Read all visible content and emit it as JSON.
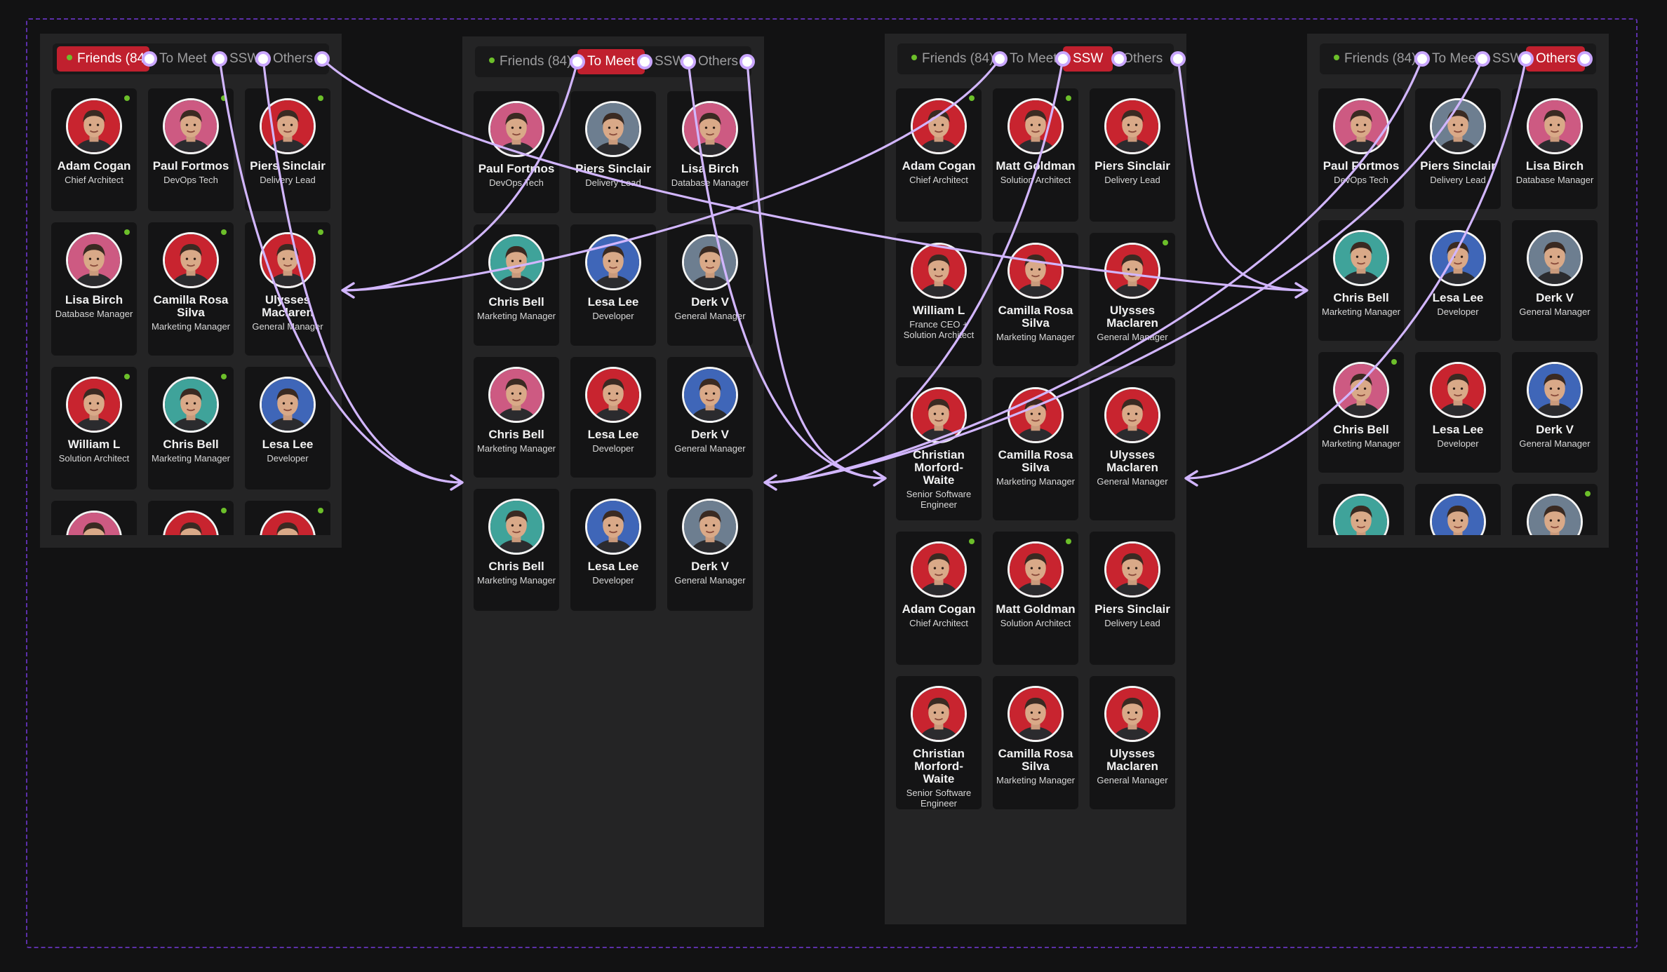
{
  "colors": {
    "background": "#121213",
    "panel": "#242425",
    "card": "#141415",
    "accent_tab": "#c0202e",
    "online": "#6cbf2a",
    "connector": "#d2b6ff",
    "frame": "#5b2fa8"
  },
  "panels": [
    {
      "id": "panel-1",
      "tabs": [
        {
          "label": "Friends (84)",
          "active": true,
          "dot": true
        },
        {
          "label": "To Meet",
          "active": false,
          "dot": false
        },
        {
          "label": "SSW",
          "active": false,
          "dot": false
        },
        {
          "label": "Others",
          "active": false,
          "dot": false
        }
      ],
      "cards": [
        {
          "name": "Adam Cogan",
          "role": "Chief Architect",
          "online": true,
          "bg": "red"
        },
        {
          "name": "Paul Fortmos",
          "role": "DevOps Tech",
          "online": true,
          "bg": "pink"
        },
        {
          "name": "Piers Sinclair",
          "role": "Delivery Lead",
          "online": true,
          "bg": "red"
        },
        {
          "name": "Lisa Birch",
          "role": "Database Manager",
          "online": true,
          "bg": "pink"
        },
        {
          "name": "Camilla Rosa Silva",
          "role": "Marketing Manager",
          "online": true,
          "bg": "red"
        },
        {
          "name": "Ulysses Maclaren",
          "role": "General Manager",
          "online": true,
          "bg": "red"
        },
        {
          "name": "William L",
          "role": "Solution Architect",
          "online": true,
          "bg": "red"
        },
        {
          "name": "Chris Bell",
          "role": "Marketing Manager",
          "online": true,
          "bg": "teal"
        },
        {
          "name": "Lesa Lee",
          "role": "Developer",
          "online": false,
          "bg": "blue"
        },
        {
          "name": "",
          "role": "",
          "online": false,
          "bg": "pink"
        },
        {
          "name": "",
          "role": "",
          "online": true,
          "bg": "red"
        },
        {
          "name": "",
          "role": "",
          "online": true,
          "bg": "red"
        }
      ]
    },
    {
      "id": "panel-2",
      "tabs": [
        {
          "label": "Friends (84)",
          "active": false,
          "dot": true
        },
        {
          "label": "To Meet",
          "active": true,
          "dot": false
        },
        {
          "label": "SSW",
          "active": false,
          "dot": false
        },
        {
          "label": "Others",
          "active": false,
          "dot": false
        }
      ],
      "cards": [
        {
          "name": "Paul Fortmos",
          "role": "DevOps Tech",
          "online": false,
          "bg": "pink"
        },
        {
          "name": "Piers Sinclair",
          "role": "Delivery Lead",
          "online": false,
          "bg": "slate"
        },
        {
          "name": "Lisa Birch",
          "role": "Database Manager",
          "online": false,
          "bg": "pink"
        },
        {
          "name": "Chris Bell",
          "role": "Marketing Manager",
          "online": false,
          "bg": "teal"
        },
        {
          "name": "Lesa Lee",
          "role": "Developer",
          "online": false,
          "bg": "blue"
        },
        {
          "name": "Derk V",
          "role": "General Manager",
          "online": false,
          "bg": "slate"
        },
        {
          "name": "Chris Bell",
          "role": "Marketing Manager",
          "online": false,
          "bg": "pink"
        },
        {
          "name": "Lesa Lee",
          "role": "Developer",
          "online": false,
          "bg": "red"
        },
        {
          "name": "Derk V",
          "role": "General Manager",
          "online": false,
          "bg": "blue"
        },
        {
          "name": "Chris Bell",
          "role": "Marketing Manager",
          "online": false,
          "bg": "teal"
        },
        {
          "name": "Lesa Lee",
          "role": "Developer",
          "online": false,
          "bg": "blue"
        },
        {
          "name": "Derk V",
          "role": "General Manager",
          "online": false,
          "bg": "slate"
        }
      ]
    },
    {
      "id": "panel-3",
      "tabs": [
        {
          "label": "Friends (84)",
          "active": false,
          "dot": true
        },
        {
          "label": "To Meet",
          "active": false,
          "dot": false
        },
        {
          "label": "SSW",
          "active": true,
          "dot": false
        },
        {
          "label": "Others",
          "active": false,
          "dot": false
        }
      ],
      "cards": [
        {
          "name": "Adam Cogan",
          "role": "Chief Architect",
          "online": true,
          "bg": "red"
        },
        {
          "name": "Matt Goldman",
          "role": "Solution Architect",
          "online": true,
          "bg": "red"
        },
        {
          "name": "Piers Sinclair",
          "role": "Delivery Lead",
          "online": false,
          "bg": "red"
        },
        {
          "name": "William L",
          "role": "France CEO + Solution Architect",
          "online": false,
          "bg": "red"
        },
        {
          "name": "Camilla Rosa Silva",
          "role": "Marketing Manager",
          "online": false,
          "bg": "red"
        },
        {
          "name": "Ulysses Maclaren",
          "role": "General Manager",
          "online": true,
          "bg": "red"
        },
        {
          "name": "Christian Morford-Waite",
          "role": "Senior Software Engineer",
          "online": false,
          "bg": "red"
        },
        {
          "name": "Camilla Rosa Silva",
          "role": "Marketing Manager",
          "online": false,
          "bg": "red"
        },
        {
          "name": "Ulysses Maclaren",
          "role": "General Manager",
          "online": false,
          "bg": "red"
        },
        {
          "name": "Adam Cogan",
          "role": "Chief Architect",
          "online": true,
          "bg": "red"
        },
        {
          "name": "Matt Goldman",
          "role": "Solution Architect",
          "online": true,
          "bg": "red"
        },
        {
          "name": "Piers Sinclair",
          "role": "Delivery Lead",
          "online": false,
          "bg": "red"
        },
        {
          "name": "Christian Morford-Waite",
          "role": "Senior Software Engineer",
          "online": false,
          "bg": "red"
        },
        {
          "name": "Camilla Rosa Silva",
          "role": "Marketing Manager",
          "online": false,
          "bg": "red"
        },
        {
          "name": "Ulysses Maclaren",
          "role": "General Manager",
          "online": false,
          "bg": "red"
        }
      ]
    },
    {
      "id": "panel-4",
      "tabs": [
        {
          "label": "Friends (84)",
          "active": false,
          "dot": true
        },
        {
          "label": "To Meet",
          "active": false,
          "dot": false
        },
        {
          "label": "SSW",
          "active": false,
          "dot": false
        },
        {
          "label": "Others",
          "active": true,
          "dot": false
        }
      ],
      "cards": [
        {
          "name": "Paul Fortmos",
          "role": "DevOps Tech",
          "online": false,
          "bg": "pink"
        },
        {
          "name": "Piers Sinclair",
          "role": "Delivery Lead",
          "online": false,
          "bg": "slate"
        },
        {
          "name": "Lisa Birch",
          "role": "Database Manager",
          "online": false,
          "bg": "pink"
        },
        {
          "name": "Chris Bell",
          "role": "Marketing Manager",
          "online": false,
          "bg": "teal"
        },
        {
          "name": "Lesa Lee",
          "role": "Developer",
          "online": false,
          "bg": "blue"
        },
        {
          "name": "Derk V",
          "role": "General Manager",
          "online": false,
          "bg": "slate"
        },
        {
          "name": "Chris Bell",
          "role": "Marketing Manager",
          "online": true,
          "bg": "pink"
        },
        {
          "name": "Lesa Lee",
          "role": "Developer",
          "online": false,
          "bg": "red"
        },
        {
          "name": "Derk V",
          "role": "General Manager",
          "online": false,
          "bg": "blue"
        },
        {
          "name": "",
          "role": "",
          "online": false,
          "bg": "teal"
        },
        {
          "name": "",
          "role": "",
          "online": false,
          "bg": "blue"
        },
        {
          "name": "",
          "role": "",
          "online": true,
          "bg": "slate"
        }
      ]
    }
  ]
}
